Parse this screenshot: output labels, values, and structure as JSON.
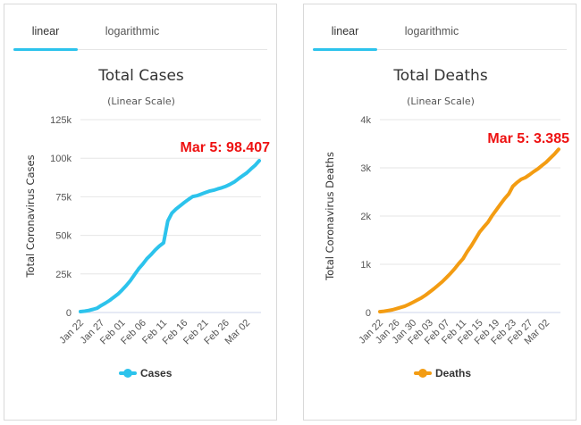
{
  "tabs": [
    "linear",
    "logarithmic"
  ],
  "chart_data": [
    {
      "type": "line",
      "title": "Total Cases",
      "subtitle": "(Linear Scale)",
      "ylabel": "Total Coronavirus Cases",
      "ylim": [
        0,
        125000
      ],
      "y_ticks": [
        0,
        25000,
        50000,
        75000,
        100000,
        125000
      ],
      "y_tick_labels": [
        "0",
        "25k",
        "50k",
        "75k",
        "100k",
        "125k"
      ],
      "x_tick_labels": [
        "Jan 22",
        "Jan 27",
        "Feb 01",
        "Feb 06",
        "Feb 11",
        "Feb 16",
        "Feb 21",
        "Feb 26",
        "Mar 02"
      ],
      "x_tick_index": [
        0,
        5,
        10,
        15,
        20,
        25,
        30,
        35,
        40
      ],
      "grid": true,
      "legend_position": "bottom",
      "color": "#2cc3ec",
      "series": [
        {
          "name": "Cases",
          "x": [
            "Jan 22",
            "Jan 23",
            "Jan 24",
            "Jan 25",
            "Jan 26",
            "Jan 27",
            "Jan 28",
            "Jan 29",
            "Jan 30",
            "Jan 31",
            "Feb 01",
            "Feb 02",
            "Feb 03",
            "Feb 04",
            "Feb 05",
            "Feb 06",
            "Feb 07",
            "Feb 08",
            "Feb 09",
            "Feb 10",
            "Feb 11",
            "Feb 12",
            "Feb 13",
            "Feb 14",
            "Feb 15",
            "Feb 16",
            "Feb 17",
            "Feb 18",
            "Feb 19",
            "Feb 20",
            "Feb 21",
            "Feb 22",
            "Feb 23",
            "Feb 24",
            "Feb 25",
            "Feb 26",
            "Feb 27",
            "Feb 28",
            "Feb 29",
            "Mar 01",
            "Mar 02",
            "Mar 03",
            "Mar 04",
            "Mar 05"
          ],
          "values": [
            580,
            845,
            1317,
            2015,
            2800,
            4581,
            6058,
            7813,
            9823,
            11950,
            14553,
            17391,
            20630,
            24545,
            28276,
            31439,
            34876,
            37552,
            40553,
            43099,
            45134,
            59287,
            64438,
            67100,
            69197,
            71329,
            73332,
            75184,
            75700,
            76677,
            77673,
            78651,
            79205,
            80087,
            80828,
            81820,
            83112,
            84615,
            86604,
            88585,
            90443,
            93016,
            95314,
            98407
          ]
        }
      ],
      "annotation": "Mar 5: 98.407"
    },
    {
      "type": "line",
      "title": "Total Deaths",
      "subtitle": "(Linear Scale)",
      "ylabel": "Total Coronavirus Deaths",
      "ylim": [
        0,
        4000
      ],
      "y_ticks": [
        0,
        1000,
        2000,
        3000,
        4000
      ],
      "y_tick_labels": [
        "0",
        "1k",
        "2k",
        "3k",
        "4k"
      ],
      "x_tick_labels": [
        "Jan 22",
        "Jan 26",
        "Jan 30",
        "Feb 03",
        "Feb 07",
        "Feb 11",
        "Feb 15",
        "Feb 19",
        "Feb 23",
        "Feb 27",
        "Mar 02"
      ],
      "x_tick_index": [
        0,
        4,
        8,
        12,
        16,
        20,
        24,
        28,
        32,
        36,
        40
      ],
      "grid": true,
      "legend_position": "bottom",
      "color": "#f39c12",
      "series": [
        {
          "name": "Deaths",
          "x": [
            "Jan 22",
            "Jan 23",
            "Jan 24",
            "Jan 25",
            "Jan 26",
            "Jan 27",
            "Jan 28",
            "Jan 29",
            "Jan 30",
            "Jan 31",
            "Feb 01",
            "Feb 02",
            "Feb 03",
            "Feb 04",
            "Feb 05",
            "Feb 06",
            "Feb 07",
            "Feb 08",
            "Feb 09",
            "Feb 10",
            "Feb 11",
            "Feb 12",
            "Feb 13",
            "Feb 14",
            "Feb 15",
            "Feb 16",
            "Feb 17",
            "Feb 18",
            "Feb 19",
            "Feb 20",
            "Feb 21",
            "Feb 22",
            "Feb 23",
            "Feb 24",
            "Feb 25",
            "Feb 26",
            "Feb 27",
            "Feb 28",
            "Feb 29",
            "Mar 01",
            "Mar 02",
            "Mar 03",
            "Mar 04",
            "Mar 05"
          ],
          "values": [
            17,
            25,
            41,
            56,
            80,
            106,
            132,
            170,
            213,
            259,
            304,
            362,
            426,
            492,
            565,
            638,
            724,
            813,
            910,
            1018,
            1115,
            1261,
            1383,
            1526,
            1669,
            1775,
            1873,
            2009,
            2126,
            2247,
            2360,
            2460,
            2618,
            2699,
            2763,
            2800,
            2858,
            2923,
            2977,
            3050,
            3117,
            3202,
            3285,
            3385
          ]
        }
      ],
      "annotation": "Mar 5: 3.385"
    }
  ]
}
